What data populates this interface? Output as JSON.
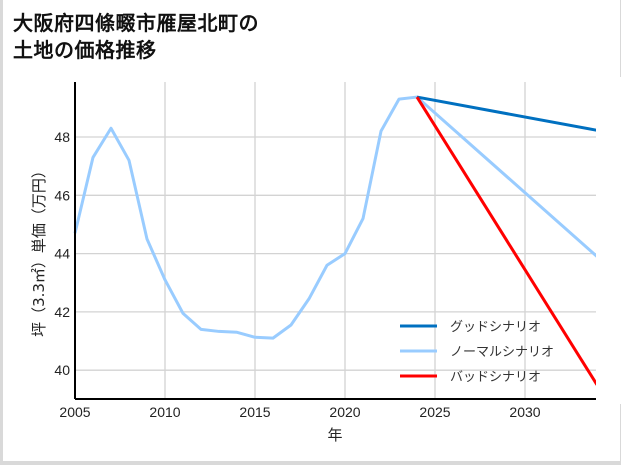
{
  "title": "大阪府四條畷市雁屋北町の\n土地の価格推移",
  "chart_data": {
    "type": "line",
    "title": "大阪府四條畷市雁屋北町の土地の価格推移",
    "xlabel": "年",
    "ylabel": "坪（3.3㎡）単価（万円）",
    "xlim": [
      2005,
      2034
    ],
    "ylim": [
      39.0,
      49.8
    ],
    "xticks": [
      2005,
      2010,
      2015,
      2020,
      2025,
      2030
    ],
    "yticks": [
      40,
      42,
      44,
      46,
      48
    ],
    "grid": true,
    "legend_position": "lower right",
    "series": [
      {
        "name": "ノーマルシナリオ",
        "color": "#99ccff",
        "x": [
          2005,
          2006,
          2007,
          2008,
          2009,
          2010,
          2011,
          2012,
          2013,
          2014,
          2015,
          2016,
          2017,
          2018,
          2019,
          2020,
          2021,
          2022,
          2023,
          2024,
          2034
        ],
        "y": [
          44.7,
          47.3,
          48.3,
          47.2,
          44.5,
          43.1,
          41.95,
          41.4,
          41.33,
          41.3,
          41.13,
          41.1,
          41.55,
          42.45,
          43.6,
          44.0,
          45.2,
          48.2,
          49.3,
          49.37,
          43.9
        ]
      },
      {
        "name": "グッドシナリオ",
        "color": "#0070c0",
        "x": [
          2024,
          2034
        ],
        "y": [
          49.37,
          48.23
        ]
      },
      {
        "name": "バッドシナリオ",
        "color": "#ff0000",
        "x": [
          2024,
          2034
        ],
        "y": [
          49.37,
          39.5
        ]
      }
    ]
  },
  "legend": [
    {
      "label": "グッドシナリオ",
      "color": "#0070c0"
    },
    {
      "label": "ノーマルシナリオ",
      "color": "#99ccff"
    },
    {
      "label": "バッドシナリオ",
      "color": "#ff0000"
    }
  ]
}
